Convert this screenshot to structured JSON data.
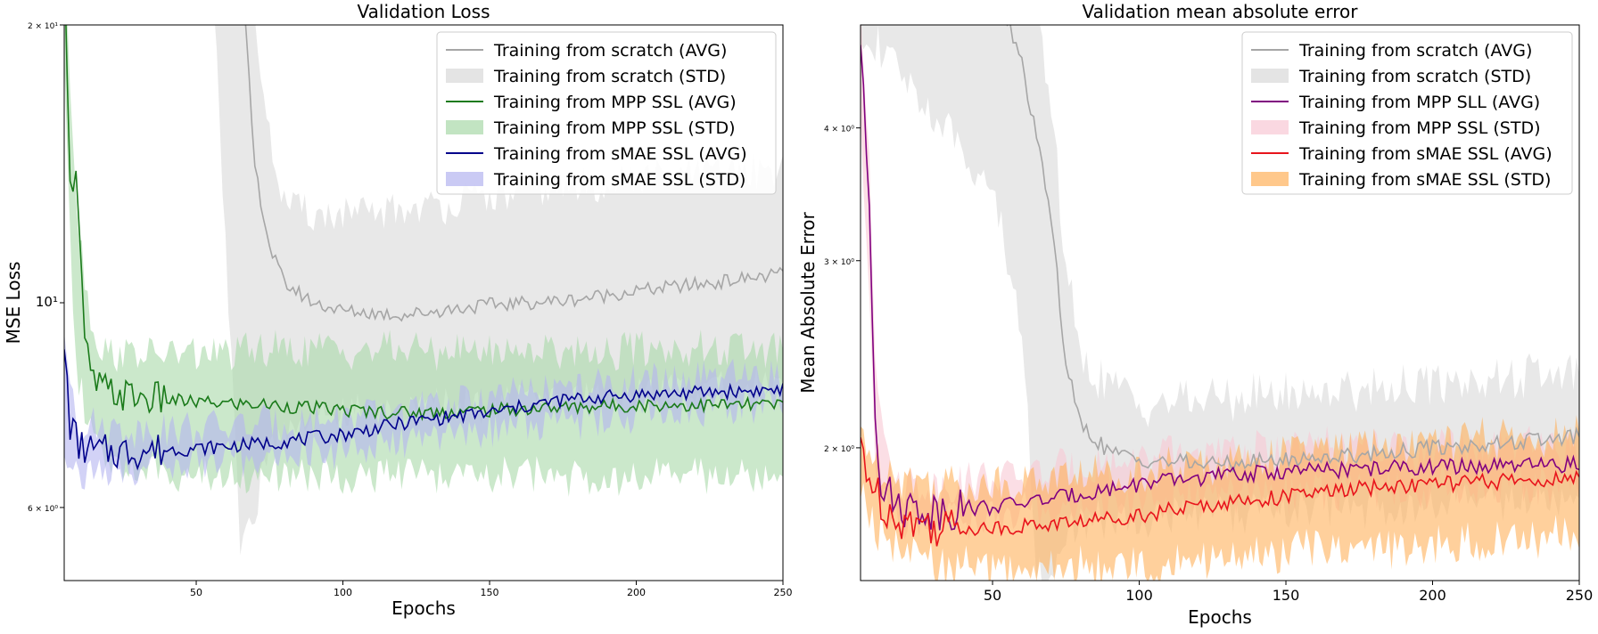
{
  "chart_data": [
    {
      "type": "line",
      "title": "Validation Loss",
      "xlabel": "Epochs",
      "ylabel": "MSE Loss",
      "yscale": "log",
      "xlim": [
        5,
        250
      ],
      "ylim": [
        5,
        20
      ],
      "xticks": [
        50,
        100,
        150,
        200,
        250
      ],
      "xtick_labels": [
        "50",
        "100",
        "150",
        "200",
        "250"
      ],
      "yticks": [
        20,
        10,
        6
      ],
      "ytick_labels": [
        "2 × 10¹",
        "10¹",
        "6 × 10⁰"
      ],
      "legend_position": "top-right",
      "grid": false,
      "series": [
        {
          "name": "Training from scratch (AVG)",
          "std_name": "Training from scratch (STD)",
          "color": "#a6a6a6",
          "fill": "#d9d9d9",
          "mean": [
            [
              5,
              60
            ],
            [
              55,
              45
            ],
            [
              65,
              24
            ],
            [
              70,
              14
            ],
            [
              75,
              11.5
            ],
            [
              80,
              10.5
            ],
            [
              90,
              10.0
            ],
            [
              100,
              9.8
            ],
            [
              120,
              9.7
            ],
            [
              150,
              9.95
            ],
            [
              175,
              10.05
            ],
            [
              200,
              10.3
            ],
            [
              225,
              10.5
            ],
            [
              250,
              10.75
            ]
          ],
          "band": [
            [
              5,
              80,
              40
            ],
            [
              55,
              60,
              25
            ],
            [
              65,
              30,
              5.4
            ],
            [
              70,
              20,
              6.0
            ],
            [
              75,
              15,
              7.0
            ],
            [
              80,
              12.8,
              7.3
            ],
            [
              90,
              12.5,
              7.5
            ],
            [
              100,
              12.4,
              7.6
            ],
            [
              120,
              12.6,
              7.7
            ],
            [
              150,
              13.0,
              7.8
            ],
            [
              175,
              13.3,
              7.9
            ],
            [
              200,
              13.6,
              8.0
            ],
            [
              225,
              13.8,
              8.1
            ],
            [
              250,
              14.0,
              8.2
            ]
          ]
        },
        {
          "name": "Training from MPP SSL (AVG)",
          "std_name": "Training from MPP SSL (STD)",
          "color": "#1a7a1a",
          "fill": "#a8d8a8",
          "mean": [
            [
              5,
              25
            ],
            [
              6,
              18
            ],
            [
              7,
              14
            ],
            [
              8,
              13
            ],
            [
              9,
              14
            ],
            [
              10,
              12
            ],
            [
              12,
              9
            ],
            [
              15,
              8.2
            ],
            [
              20,
              8.0
            ],
            [
              30,
              7.9
            ],
            [
              50,
              7.8
            ],
            [
              75,
              7.75
            ],
            [
              100,
              7.65
            ],
            [
              125,
              7.6
            ],
            [
              150,
              7.65
            ],
            [
              175,
              7.7
            ],
            [
              200,
              7.75
            ],
            [
              225,
              7.75
            ],
            [
              250,
              7.75
            ]
          ],
          "band": [
            [
              5,
              25,
              19
            ],
            [
              8,
              15,
              10
            ],
            [
              10,
              12,
              8.2
            ],
            [
              15,
              9.2,
              7.0
            ],
            [
              20,
              8.8,
              6.7
            ],
            [
              30,
              8.8,
              6.6
            ],
            [
              50,
              8.8,
              6.5
            ],
            [
              75,
              8.9,
              6.5
            ],
            [
              100,
              8.9,
              6.5
            ],
            [
              150,
              8.9,
              6.5
            ],
            [
              200,
              8.9,
              6.5
            ],
            [
              250,
              8.9,
              6.5
            ]
          ]
        },
        {
          "name": "Training from sMAE SSL (AVG)",
          "std_name": "Training from sMAE SSL (STD)",
          "color": "#00008b",
          "fill": "#b4b4f0",
          "mean": [
            [
              5,
              9.0
            ],
            [
              7,
              7.4
            ],
            [
              10,
              7.0
            ],
            [
              15,
              6.9
            ],
            [
              25,
              6.9
            ],
            [
              50,
              6.95
            ],
            [
              75,
              7.05
            ],
            [
              100,
              7.2
            ],
            [
              125,
              7.45
            ],
            [
              150,
              7.6
            ],
            [
              175,
              7.85
            ],
            [
              200,
              7.95
            ],
            [
              225,
              8.0
            ],
            [
              250,
              8.05
            ]
          ],
          "band": [
            [
              5,
              9.3,
              7.0
            ],
            [
              10,
              7.4,
              6.5
            ],
            [
              25,
              7.3,
              6.6
            ],
            [
              50,
              7.3,
              6.7
            ],
            [
              100,
              7.5,
              6.9
            ],
            [
              150,
              7.9,
              7.3
            ],
            [
              200,
              8.2,
              7.6
            ],
            [
              250,
              8.3,
              7.8
            ]
          ]
        }
      ]
    },
    {
      "type": "line",
      "title": "Validation mean absolute error",
      "xlabel": "Epochs",
      "ylabel": "Mean Absolute Error",
      "yscale": "log",
      "xlim": [
        5,
        250
      ],
      "ylim": [
        1.5,
        5
      ],
      "xticks": [
        50,
        100,
        150,
        200,
        250
      ],
      "xtick_labels": [
        "50",
        "100",
        "150",
        "200",
        "250"
      ],
      "yticks": [
        4,
        3,
        2
      ],
      "ytick_labels": [
        "4 × 10⁰",
        "3 × 10⁰",
        "2 × 10⁰"
      ],
      "legend_position": "top-right",
      "grid": false,
      "series": [
        {
          "name": "Training from scratch (AVG)",
          "std_name": "Training from scratch (STD)",
          "color": "#a6a6a6",
          "fill": "#d9d9d9",
          "mean": [
            [
              5,
              6
            ],
            [
              50,
              5.5
            ],
            [
              60,
              4.6
            ],
            [
              65,
              3.9
            ],
            [
              70,
              3.3
            ],
            [
              75,
              2.4
            ],
            [
              80,
              2.1
            ],
            [
              90,
              1.98
            ],
            [
              100,
              1.95
            ],
            [
              125,
              1.93
            ],
            [
              150,
              1.95
            ],
            [
              175,
              1.97
            ],
            [
              200,
              2.0
            ],
            [
              225,
              2.02
            ],
            [
              250,
              2.05
            ]
          ],
          "band": [
            [
              5,
              8,
              5.0
            ],
            [
              50,
              8,
              3.5
            ],
            [
              60,
              6,
              2.6
            ],
            [
              65,
              5,
              1.55
            ],
            [
              70,
              4.2,
              1.5
            ],
            [
              75,
              3.0,
              1.65
            ],
            [
              80,
              2.4,
              1.7
            ],
            [
              100,
              2.2,
              1.72
            ],
            [
              150,
              2.25,
              1.75
            ],
            [
              200,
              2.3,
              1.78
            ],
            [
              250,
              2.35,
              1.8
            ]
          ]
        },
        {
          "name": "Training from MPP SLL (AVG)",
          "std_name": "Training from MPP SSL (STD)",
          "color": "#800080",
          "fill": "#f8c8d4",
          "mean": [
            [
              5,
              4.8
            ],
            [
              6,
              4.5
            ],
            [
              8,
              3.4
            ],
            [
              10,
              2.2
            ],
            [
              12,
              1.85
            ],
            [
              15,
              1.8
            ],
            [
              20,
              1.76
            ],
            [
              30,
              1.75
            ],
            [
              50,
              1.76
            ],
            [
              75,
              1.8
            ],
            [
              100,
              1.85
            ],
            [
              125,
              1.88
            ],
            [
              150,
              1.9
            ],
            [
              175,
              1.91
            ],
            [
              200,
              1.92
            ],
            [
              225,
              1.92
            ],
            [
              250,
              1.93
            ]
          ],
          "band": [
            [
              5,
              5.2,
              4.2
            ],
            [
              8,
              3.8,
              2.8
            ],
            [
              10,
              2.5,
              1.9
            ],
            [
              15,
              1.88,
              1.72
            ],
            [
              25,
              1.84,
              1.7
            ],
            [
              50,
              1.87,
              1.72
            ],
            [
              100,
              1.95,
              1.78
            ],
            [
              150,
              2.0,
              1.82
            ],
            [
              200,
              2.0,
              1.84
            ],
            [
              250,
              2.0,
              1.86
            ]
          ]
        },
        {
          "name": "Training from sMAE SSL (AVG)",
          "std_name": "Training from sMAE SSL (STD)",
          "color": "#e8141c",
          "fill": "#ffb05a",
          "mean": [
            [
              5,
              2.05
            ],
            [
              7,
              1.92
            ],
            [
              10,
              1.82
            ],
            [
              15,
              1.74
            ],
            [
              20,
              1.71
            ],
            [
              30,
              1.69
            ],
            [
              50,
              1.68
            ],
            [
              75,
              1.7
            ],
            [
              100,
              1.73
            ],
            [
              125,
              1.77
            ],
            [
              150,
              1.8
            ],
            [
              175,
              1.83
            ],
            [
              200,
              1.85
            ],
            [
              225,
              1.86
            ],
            [
              250,
              1.87
            ]
          ],
          "band": [
            [
              5,
              2.1,
              1.85
            ],
            [
              10,
              1.95,
              1.68
            ],
            [
              20,
              1.88,
              1.58
            ],
            [
              30,
              1.85,
              1.55
            ],
            [
              50,
              1.85,
              1.53
            ],
            [
              75,
              1.88,
              1.54
            ],
            [
              100,
              1.9,
              1.55
            ],
            [
              150,
              1.98,
              1.6
            ],
            [
              200,
              2.02,
              1.62
            ],
            [
              250,
              2.05,
              1.66
            ]
          ]
        }
      ]
    }
  ]
}
